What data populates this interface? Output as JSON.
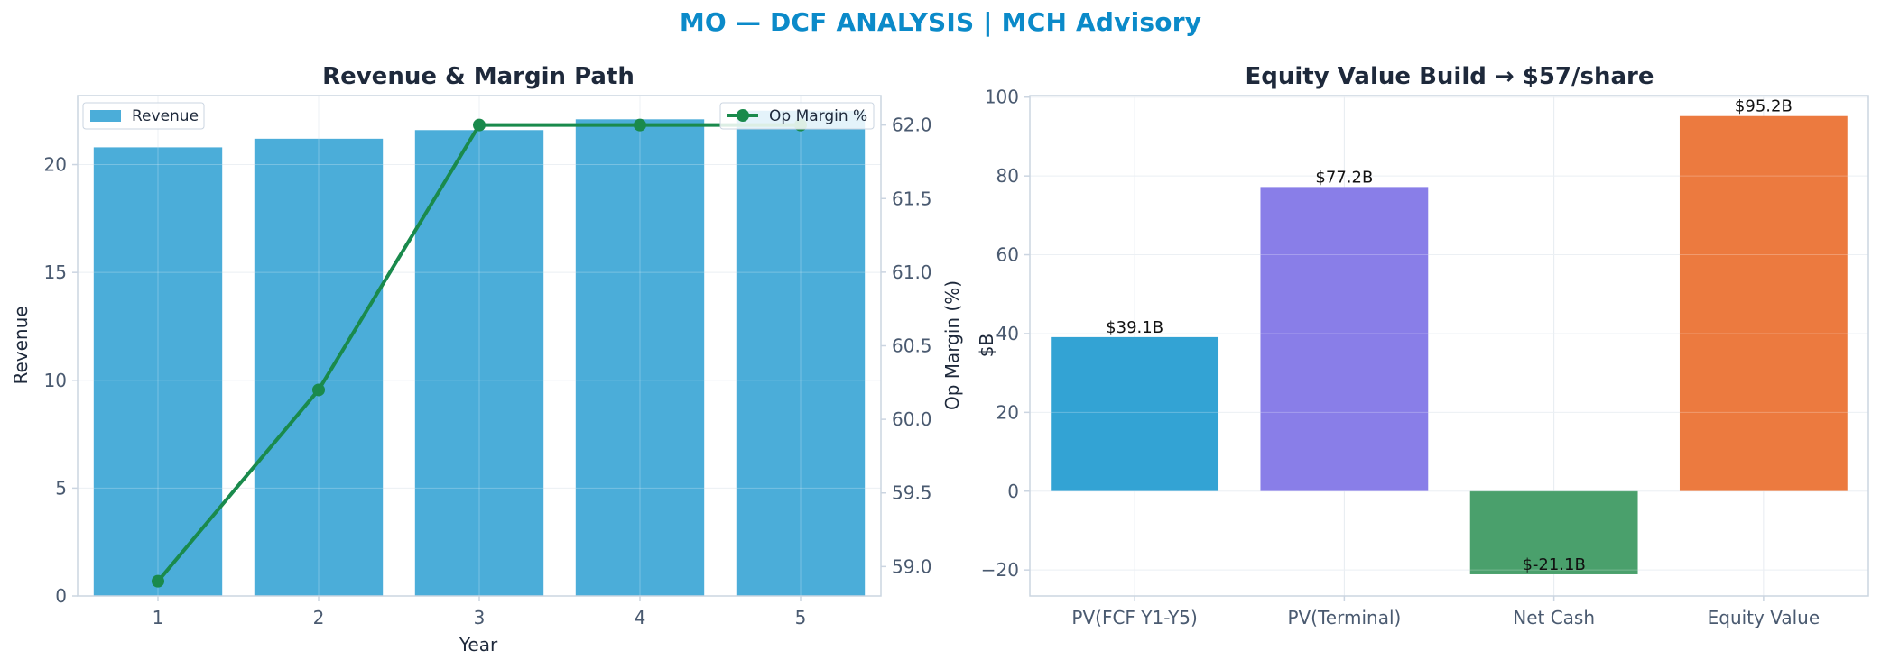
{
  "suptitle": "MO — DCF ANALYSIS | MCH Advisory",
  "colors": {
    "brand": "#0b8ac9",
    "revenue_bar": "#4badd9",
    "margin_line": "#1a8a4c",
    "grid": "#e6ebf1",
    "axis": "#cbd5e1",
    "tick_text": "#4a5a70",
    "title_text": "#1e293b"
  },
  "chart_data": [
    {
      "type": "bar",
      "title": "Revenue & Margin Path",
      "xlabel": "Year",
      "ylabel": "Revenue",
      "y2label": "Op Margin (%)",
      "categories": [
        "1",
        "2",
        "3",
        "4",
        "5"
      ],
      "ylim": [
        0,
        23.2
      ],
      "yticks": [
        0,
        5,
        10,
        15,
        20
      ],
      "y2lim": [
        58.8,
        62.2
      ],
      "y2ticks": [
        "59.0",
        "59.5",
        "60.0",
        "60.5",
        "61.0",
        "61.5",
        "62.0"
      ],
      "grid": true,
      "series": [
        {
          "name": "Revenue",
          "type": "bar",
          "axis": "left",
          "color": "#4badd9",
          "values": [
            20.8,
            21.2,
            21.6,
            22.1,
            22.5
          ]
        },
        {
          "name": "Op Margin %",
          "type": "line",
          "axis": "right",
          "color": "#1a8a4c",
          "values": [
            58.9,
            60.2,
            62.0,
            62.0,
            62.0
          ]
        }
      ],
      "legend": [
        {
          "label": "Revenue",
          "placement": "top-left"
        },
        {
          "label": "Op Margin %",
          "placement": "top-right"
        }
      ]
    },
    {
      "type": "bar",
      "title": "Equity Value Build → $57/share",
      "ylabel": "$B",
      "categories": [
        "PV(FCF Y1-Y5)",
        "PV(Terminal)",
        "Net Cash",
        "Equity Value"
      ],
      "values": [
        39.1,
        77.2,
        -21.1,
        95.2
      ],
      "data_labels": [
        "$39.1B",
        "$77.2B",
        "$-21.1B",
        "$95.2B"
      ],
      "colors": [
        "#33a3d4",
        "#897ee8",
        "#4aa06c",
        "#ec7a3f"
      ],
      "ylim": [
        -26.6,
        100.4
      ],
      "yticks": [
        -20,
        0,
        20,
        40,
        60,
        80,
        100
      ],
      "grid": true
    }
  ]
}
